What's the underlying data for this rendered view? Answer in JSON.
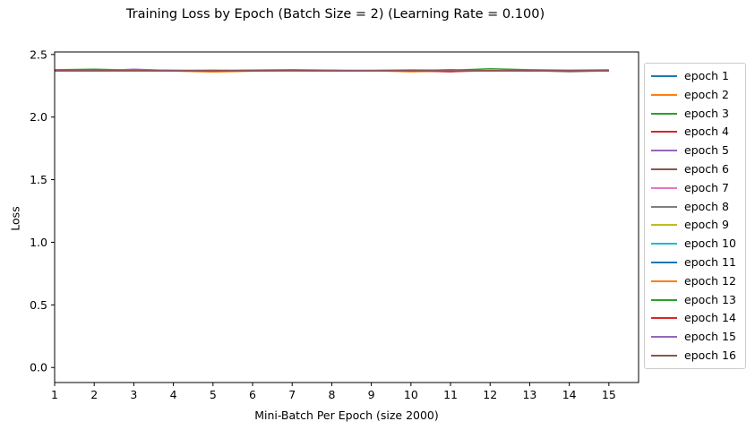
{
  "chart_data": {
    "type": "line",
    "title": "Training Loss by Epoch (Batch Size = 2) (Learning Rate = 0.100)",
    "xlabel": "Mini-Batch Per Epoch (size 2000)",
    "ylabel": "Loss",
    "xlim": [
      1,
      15.75
    ],
    "ylim": [
      -0.12,
      2.52
    ],
    "xticks": [
      "1",
      "2",
      "3",
      "4",
      "5",
      "6",
      "7",
      "8",
      "9",
      "10",
      "11",
      "12",
      "13",
      "14",
      "15"
    ],
    "yticks": [
      "0.0",
      "0.5",
      "1.0",
      "1.5",
      "2.0",
      "2.5"
    ],
    "grid": false,
    "legend_position": "outside right",
    "x": [
      1,
      2,
      3,
      4,
      5,
      6,
      7,
      8,
      9,
      10,
      11,
      12,
      13,
      14,
      15
    ],
    "series": [
      {
        "name": "epoch 1",
        "color": "#1f77b4",
        "values": [
          2.37,
          2.372,
          2.368,
          2.371,
          2.374,
          2.369,
          2.371,
          2.373,
          2.37,
          2.368,
          2.372,
          2.37,
          2.369,
          2.371,
          2.37
        ]
      },
      {
        "name": "epoch 2",
        "color": "#ff7f0e",
        "values": [
          2.372,
          2.369,
          2.371,
          2.368,
          2.36,
          2.367,
          2.372,
          2.37,
          2.371,
          2.362,
          2.369,
          2.372,
          2.37,
          2.366,
          2.371
        ]
      },
      {
        "name": "epoch 3",
        "color": "#2ca02c",
        "values": [
          2.378,
          2.382,
          2.376,
          2.374,
          2.372,
          2.375,
          2.378,
          2.374,
          2.373,
          2.376,
          2.374,
          2.386,
          2.378,
          2.374,
          2.377
        ]
      },
      {
        "name": "epoch 4",
        "color": "#d62728",
        "values": [
          2.368,
          2.37,
          2.368,
          2.371,
          2.369,
          2.37,
          2.368,
          2.371,
          2.369,
          2.37,
          2.372,
          2.369,
          2.371,
          2.37,
          2.368
        ]
      },
      {
        "name": "epoch 5",
        "color": "#9467bd",
        "values": [
          2.372,
          2.369,
          2.382,
          2.372,
          2.37,
          2.371,
          2.369,
          2.372,
          2.37,
          2.371,
          2.372,
          2.37,
          2.371,
          2.369,
          2.372
        ]
      },
      {
        "name": "epoch 6",
        "color": "#8c564b",
        "values": [
          2.369,
          2.371,
          2.37,
          2.369,
          2.372,
          2.37,
          2.371,
          2.369,
          2.37,
          2.372,
          2.37,
          2.371,
          2.369,
          2.37,
          2.371
        ]
      },
      {
        "name": "epoch 7",
        "color": "#e377c2",
        "values": [
          2.371,
          2.37,
          2.372,
          2.37,
          2.369,
          2.371,
          2.37,
          2.372,
          2.371,
          2.369,
          2.37,
          2.372,
          2.37,
          2.371,
          2.369
        ]
      },
      {
        "name": "epoch 8",
        "color": "#7f7f7f",
        "values": [
          2.37,
          2.372,
          2.369,
          2.371,
          2.37,
          2.369,
          2.372,
          2.37,
          2.371,
          2.37,
          2.369,
          2.371,
          2.372,
          2.362,
          2.37
        ]
      },
      {
        "name": "epoch 9",
        "color": "#bcbd22",
        "values": [
          2.371,
          2.369,
          2.371,
          2.37,
          2.372,
          2.37,
          2.369,
          2.371,
          2.37,
          2.372,
          2.37,
          2.369,
          2.371,
          2.37,
          2.372
        ]
      },
      {
        "name": "epoch 10",
        "color": "#17becf",
        "values": [
          2.37,
          2.371,
          2.37,
          2.372,
          2.369,
          2.371,
          2.37,
          2.369,
          2.372,
          2.37,
          2.371,
          2.37,
          2.372,
          2.369,
          2.371
        ]
      },
      {
        "name": "epoch 11",
        "color": "#1f77b4",
        "values": [
          2.372,
          2.37,
          2.371,
          2.369,
          2.371,
          2.37,
          2.372,
          2.37,
          2.369,
          2.371,
          2.378,
          2.37,
          2.369,
          2.372,
          2.37
        ]
      },
      {
        "name": "epoch 12",
        "color": "#ff7f0e",
        "values": [
          2.369,
          2.371,
          2.37,
          2.372,
          2.37,
          2.371,
          2.369,
          2.372,
          2.37,
          2.369,
          2.371,
          2.37,
          2.372,
          2.37,
          2.369
        ]
      },
      {
        "name": "epoch 13",
        "color": "#2ca02c",
        "values": [
          2.371,
          2.372,
          2.37,
          2.371,
          2.372,
          2.37,
          2.371,
          2.37,
          2.372,
          2.371,
          2.37,
          2.372,
          2.371,
          2.37,
          2.372
        ]
      },
      {
        "name": "epoch 14",
        "color": "#d62728",
        "values": [
          2.372,
          2.37,
          2.372,
          2.37,
          2.371,
          2.369,
          2.372,
          2.37,
          2.371,
          2.37,
          2.362,
          2.372,
          2.37,
          2.371,
          2.37
        ]
      },
      {
        "name": "epoch 15",
        "color": "#9467bd",
        "values": [
          2.37,
          2.371,
          2.369,
          2.372,
          2.37,
          2.372,
          2.369,
          2.371,
          2.372,
          2.37,
          2.371,
          2.369,
          2.372,
          2.37,
          2.371
        ]
      },
      {
        "name": "epoch 16",
        "color": "#8c564b",
        "values": [
          2.369,
          2.37,
          2.371,
          2.369,
          2.37,
          2.371,
          2.372,
          2.369,
          2.37,
          2.371,
          2.369,
          2.37,
          2.371,
          2.369,
          2.37
        ]
      }
    ]
  }
}
